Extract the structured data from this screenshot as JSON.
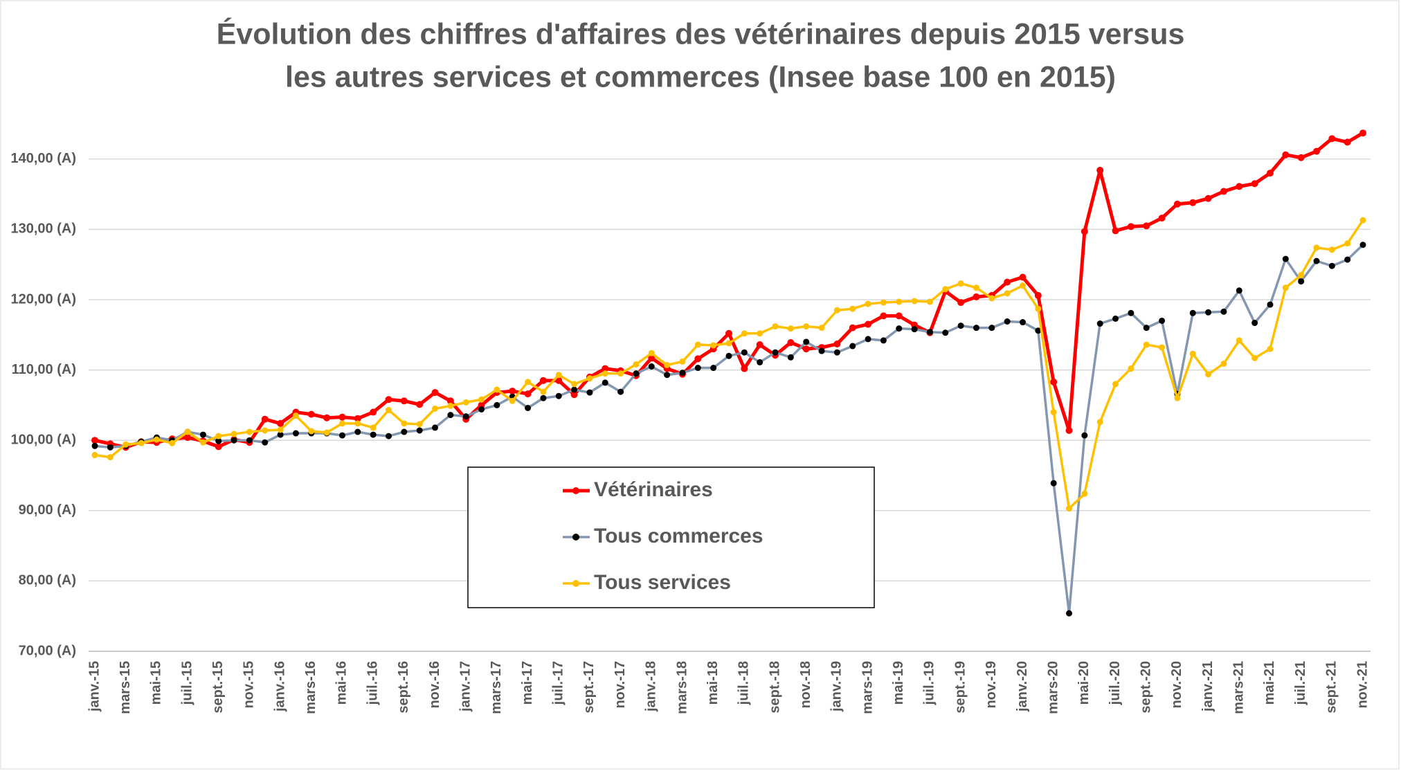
{
  "chart_data": {
    "type": "line",
    "title": [
      "Évolution des chiffres d'affaires des vétérinaires depuis 2015 versus",
      "les autres services et commerces (Insee base 100 en 2015)"
    ],
    "categories": [
      "janv.-15",
      null,
      "mars-15",
      null,
      "mai-15",
      null,
      "juil.-15",
      null,
      "sept.-15",
      null,
      "nov.-15",
      null,
      "janv.-16",
      null,
      "mars-16",
      null,
      "mai-16",
      null,
      "juil.-16",
      null,
      "sept.-16",
      null,
      "nov.-16",
      null,
      "janv.-17",
      null,
      "mars-17",
      null,
      "mai-17",
      null,
      "juil.-17",
      null,
      "sept.-17",
      null,
      "nov.-17",
      null,
      "janv.-18",
      null,
      "mars-18",
      null,
      "mai-18",
      null,
      "juil.-18",
      null,
      "sept.-18",
      null,
      "nov.-18",
      null,
      "janv.-19",
      null,
      "mars-19",
      null,
      "mai-19",
      null,
      "juil.-19",
      null,
      "sept.-19",
      null,
      "nov.-19",
      null,
      "janv.-20",
      null,
      "mars-20",
      null,
      "mai-20",
      null,
      "juil.-20",
      null,
      "sept.-20",
      null,
      "nov.-20",
      null,
      "janv.-21",
      null,
      "mars-21",
      null,
      "mai-21",
      null,
      "juil.-21",
      null,
      "sept.-21",
      null,
      "nov.-21"
    ],
    "series": [
      {
        "name": "Vétérinaires",
        "color": "#ff0000",
        "marker_color": "#ff0000",
        "values": [
          100,
          99.5,
          99,
          99.8,
          99.7,
          100.2,
          100.4,
          99.9,
          99.1,
          100.1,
          99.7,
          103.0,
          102.4,
          104.0,
          103.7,
          103.2,
          103.3,
          103.1,
          104.0,
          105.8,
          105.6,
          105.1,
          106.8,
          105.6,
          103.0,
          105.0,
          106.8,
          107.0,
          106.6,
          108.5,
          108.5,
          106.5,
          109.0,
          110.2,
          109.9,
          109.2,
          111.7,
          110.2,
          109.4,
          111.6,
          113.0,
          115.2,
          110.2,
          113.6,
          112.1,
          113.9,
          113.0,
          113.2,
          113.7,
          116.0,
          116.5,
          117.7,
          117.7,
          116.4,
          115.3,
          121.2,
          119.6,
          120.4,
          120.6,
          122.5,
          123.2,
          120.6,
          108.3,
          101.4,
          129.7,
          138.4,
          129.8,
          130.4,
          130.5,
          131.6,
          133.6,
          133.8,
          134.4,
          135.4,
          136.1,
          136.5,
          138.0,
          140.6,
          140.2,
          141.1,
          142.9,
          142.4,
          143.7
        ]
      },
      {
        "name": "Tous commerces",
        "color": "#8497b0",
        "marker_color": "#000000",
        "values": [
          99.2,
          99.0,
          99.2,
          99.8,
          100.4,
          100.0,
          101.2,
          100.8,
          99.9,
          100.0,
          100.0,
          99.7,
          100.8,
          101.0,
          101.0,
          101.0,
          100.7,
          101.2,
          100.8,
          100.6,
          101.2,
          101.4,
          101.8,
          103.6,
          103.4,
          104.4,
          105.0,
          106.2,
          104.6,
          106.0,
          106.3,
          107.2,
          106.8,
          108.2,
          106.9,
          109.5,
          110.5,
          109.3,
          109.6,
          110.3,
          110.3,
          112.0,
          112.5,
          111.1,
          112.5,
          111.8,
          114.0,
          112.7,
          112.5,
          113.4,
          114.4,
          114.2,
          115.9,
          115.8,
          115.4,
          115.3,
          116.3,
          116.0,
          116.0,
          116.9,
          116.8,
          115.6,
          93.9,
          75.4,
          100.7,
          116.6,
          117.3,
          118.1,
          116.0,
          117.0,
          106.6,
          118.1,
          118.2,
          118.3,
          121.3,
          116.7,
          119.3,
          125.8,
          122.6,
          125.5,
          124.8,
          125.7,
          127.8
        ]
      },
      {
        "name": "Tous services",
        "color": "#ffc000",
        "marker_color": "#ffc000",
        "values": [
          97.9,
          97.6,
          99.4,
          99.6,
          100.1,
          99.6,
          101.2,
          99.7,
          100.6,
          100.9,
          101.2,
          101.4,
          101.5,
          103.5,
          101.3,
          101.1,
          102.4,
          102.4,
          101.8,
          104.3,
          102.4,
          102.3,
          104.5,
          104.9,
          105.4,
          105.8,
          107.2,
          105.6,
          108.3,
          106.9,
          109.3,
          108.0,
          108.8,
          109.5,
          109.5,
          110.8,
          112.4,
          110.7,
          111.2,
          113.6,
          113.5,
          113.8,
          115.2,
          115.2,
          116.2,
          115.9,
          116.2,
          116.0,
          118.5,
          118.7,
          119.4,
          119.6,
          119.7,
          119.8,
          119.7,
          121.5,
          122.3,
          121.7,
          120.2,
          120.9,
          122.0,
          118.7,
          104.0,
          90.3,
          92.4,
          102.6,
          108.0,
          110.2,
          113.6,
          113.2,
          106.0,
          112.3,
          109.4,
          110.9,
          114.2,
          111.7,
          113.0,
          121.7,
          123.5,
          127.4,
          127.1,
          128.0,
          131.3
        ]
      }
    ],
    "ylim": [
      70,
      145
    ],
    "yticks": [
      {
        "value": 70,
        "label": "70,00 (A)"
      },
      {
        "value": 80,
        "label": "80,00 (A)"
      },
      {
        "value": 90,
        "label": "90,00 (A)"
      },
      {
        "value": 100,
        "label": "100,00 (A)"
      },
      {
        "value": 110,
        "label": "110,00 (A)"
      },
      {
        "value": 120,
        "label": "120,00 (A)"
      },
      {
        "value": 130,
        "label": "130,00 (A)"
      },
      {
        "value": 140,
        "label": "140,00 (A)"
      }
    ],
    "grid": true,
    "legend": "center"
  }
}
